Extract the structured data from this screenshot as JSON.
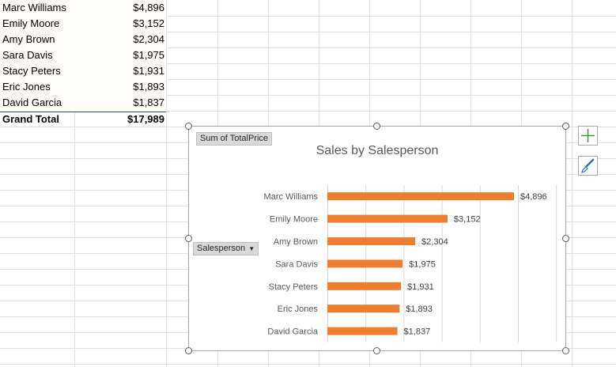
{
  "pivot": {
    "rows": [
      {
        "name": "Marc Williams",
        "value": "$4,896"
      },
      {
        "name": "Emily Moore",
        "value": "$3,152"
      },
      {
        "name": "Amy Brown",
        "value": "$2,304"
      },
      {
        "name": "Sara Davis",
        "value": "$1,975"
      },
      {
        "name": "Stacy Peters",
        "value": "$1,931"
      },
      {
        "name": "Eric Jones",
        "value": "$1,893"
      },
      {
        "name": "David Garcia",
        "value": "$1,837"
      }
    ],
    "grand_total_label": "Grand Total",
    "grand_total_value": "$17,989"
  },
  "chart": {
    "value_field_button": "Sum of TotalPrice",
    "axis_field_button": "Salesperson",
    "axis_field_dropdown_icon": "dropdown-triangle-icon",
    "side_buttons": [
      "chart-elements-plus-icon",
      "chart-styles-brush-icon"
    ]
  },
  "chart_data": {
    "type": "bar",
    "orientation": "horizontal",
    "title": "Sales by Salesperson",
    "categories": [
      "Marc Williams",
      "Emily Moore",
      "Amy Brown",
      "Sara Davis",
      "Stacy Peters",
      "Eric Jones",
      "David Garcia"
    ],
    "values": [
      4896,
      3152,
      2304,
      1975,
      1931,
      1893,
      1837
    ],
    "data_labels": [
      "$4,896",
      "$3,152",
      "$2,304",
      "$1,975",
      "$1,931",
      "$1,893",
      "$1,837"
    ],
    "xlim": [
      0,
      6000
    ],
    "grid": true,
    "bar_color": "#ed7d31"
  },
  "colors": {
    "bar": "#ed7d31",
    "gridline": "#d9d9d9",
    "header_border": "#2e4b7a"
  }
}
